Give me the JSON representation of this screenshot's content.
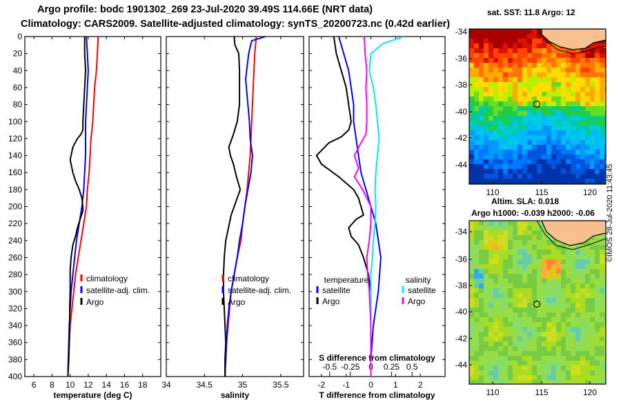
{
  "title": {
    "line1": "Argo profile: bodc 1901302_269 23-Jul-2020 39.49S 114.66E (NRT data)",
    "line2": "Climatology: CARS2009. Satellite-adjusted climatology: synTS_20200723.nc (0.42d earlier)"
  },
  "colors": {
    "climatology": "#ff0000",
    "satellite": "#0000ff",
    "argo": "#000000",
    "sat_salinity": "#00e8ff",
    "argo_salinity": "#ff00ff"
  },
  "depth_ticks": [
    0,
    20,
    40,
    60,
    80,
    100,
    120,
    140,
    160,
    180,
    200,
    220,
    240,
    260,
    280,
    300,
    320,
    340,
    360,
    380,
    400
  ],
  "chart_data": [
    {
      "type": "line",
      "name": "temperature",
      "xlabel": "temperature (deg C)",
      "ylabel": "depth",
      "xlim": [
        5,
        20
      ],
      "ylim": [
        400,
        0
      ],
      "xticks": [
        6,
        8,
        10,
        12,
        14,
        16,
        18
      ],
      "xtick_labels": [
        "6",
        "8",
        "10",
        "12",
        "14",
        "16",
        "18"
      ],
      "legend": [
        "climatology",
        "satellite-adj. clim.",
        "Argo"
      ],
      "series": [
        {
          "name": "climatology",
          "color": "#ff0000",
          "x": [
            13.1,
            13.0,
            12.9,
            12.7,
            12.6,
            12.5,
            12.3,
            12.2,
            12.1,
            11.9,
            11.8,
            11.5,
            11.2,
            10.9,
            10.6,
            10.4,
            10.2,
            10.0,
            9.9,
            9.8,
            9.75
          ],
          "y": [
            0,
            20,
            40,
            60,
            80,
            100,
            120,
            140,
            160,
            180,
            200,
            220,
            240,
            260,
            280,
            300,
            320,
            340,
            360,
            380,
            400
          ]
        },
        {
          "name": "satellite-adj. clim.",
          "color": "#0000ff",
          "x": [
            11.8,
            11.9,
            12.0,
            11.9,
            11.8,
            11.7,
            11.7,
            11.7,
            11.6,
            11.5,
            11.3,
            11.0,
            10.7,
            10.5,
            10.3,
            10.1,
            10.0,
            9.9,
            9.85,
            9.8,
            9.75
          ],
          "y": [
            0,
            20,
            40,
            60,
            80,
            100,
            120,
            140,
            160,
            180,
            200,
            220,
            240,
            260,
            280,
            300,
            320,
            340,
            360,
            380,
            400
          ]
        },
        {
          "name": "Argo",
          "color": "#000000",
          "x": [
            11.6,
            11.6,
            11.7,
            11.6,
            11.5,
            11.4,
            11.4,
            11.2,
            10.8,
            10.3,
            10.0,
            10.3,
            10.6,
            11.0,
            11.3,
            11.4,
            11.4,
            11.1,
            10.8,
            10.6,
            10.3,
            10.1,
            10.0,
            10.0,
            10.0,
            9.95,
            9.95,
            9.9,
            9.85,
            9.8,
            9.75
          ],
          "y": [
            0,
            20,
            40,
            60,
            80,
            100,
            110,
            115,
            120,
            130,
            145,
            160,
            170,
            180,
            190,
            200,
            205,
            215,
            225,
            235,
            245,
            260,
            275,
            290,
            300,
            320,
            340,
            360,
            380,
            390,
            400
          ]
        }
      ]
    },
    {
      "type": "line",
      "name": "salinity",
      "xlabel": "salinity",
      "xlim": [
        34,
        35.8
      ],
      "ylim": [
        400,
        0
      ],
      "xticks": [
        34,
        34.5,
        35,
        35.5
      ],
      "xtick_labels": [
        "34",
        "34.5",
        "35",
        "35.5"
      ],
      "legend": [
        "climatology",
        "satellite-adj. clim.",
        "Argo"
      ],
      "series": [
        {
          "name": "climatology",
          "color": "#ff0000",
          "x": [
            35.18,
            35.16,
            35.15,
            35.14,
            35.13,
            35.12,
            35.11,
            35.1,
            35.08,
            35.06,
            35.03,
            35.0,
            34.98,
            34.93,
            34.89,
            34.85,
            34.83,
            34.81,
            34.79,
            34.78,
            34.77
          ],
          "y": [
            0,
            20,
            40,
            60,
            80,
            100,
            120,
            140,
            160,
            180,
            200,
            220,
            240,
            260,
            280,
            300,
            320,
            340,
            360,
            380,
            400
          ]
        },
        {
          "name": "satellite-adj. clim.",
          "color": "#0000ff",
          "x": [
            35.3,
            35.12,
            35.08,
            35.04,
            35.06,
            35.09,
            35.1,
            35.13,
            35.11,
            35.07,
            35.03,
            35.0,
            34.96,
            34.93,
            34.89,
            34.85,
            34.82,
            34.8,
            34.79,
            34.78,
            34.77
          ],
          "y": [
            0,
            5,
            20,
            50,
            70,
            100,
            120,
            140,
            160,
            180,
            200,
            220,
            240,
            260,
            280,
            300,
            320,
            340,
            360,
            380,
            400
          ]
        },
        {
          "name": "Argo",
          "color": "#000000",
          "x": [
            34.89,
            34.9,
            34.95,
            34.96,
            34.96,
            34.96,
            34.93,
            34.88,
            34.82,
            34.84,
            34.88,
            34.92,
            34.97,
            34.93,
            34.85,
            34.78,
            34.76,
            34.75,
            34.75,
            34.76,
            34.77,
            34.78,
            34.77,
            34.77,
            34.77,
            34.77
          ],
          "y": [
            0,
            10,
            20,
            40,
            60,
            80,
            100,
            115,
            130,
            140,
            150,
            165,
            180,
            190,
            210,
            240,
            260,
            280,
            300,
            320,
            340,
            360,
            380,
            390,
            395,
            400
          ]
        }
      ]
    },
    {
      "type": "line",
      "name": "difference",
      "xlabel": "T difference from climatology",
      "x2label": "S difference from climatology",
      "xlim": [
        -2.5,
        3
      ],
      "ylim": [
        400,
        0
      ],
      "xticks": [
        -2,
        -1,
        0,
        1,
        2
      ],
      "xtick_labels": [
        "-2",
        "-1",
        "0",
        "1",
        "2"
      ],
      "s_xlim": [
        -0.75,
        0.9
      ],
      "s_xticks": [
        -0.5,
        -0.25,
        0,
        0.25,
        0.5
      ],
      "s_xtick_labels": [
        "-0.5",
        "-0.25",
        "0",
        "0.25",
        "0.5"
      ],
      "legend_groups": {
        "temperature": [
          "satellite",
          "Argo"
        ],
        "salinity": [
          "satellite",
          "Argo"
        ]
      },
      "series": [
        {
          "name": "temperature satellite",
          "color": "#0000ff",
          "x": [
            -1.3,
            -1.1,
            -0.9,
            -0.8,
            -0.7,
            -0.7,
            -0.6,
            -0.5,
            -0.4,
            -0.2,
            0.0,
            0.2,
            0.3,
            0.4,
            0.35,
            0.3,
            0.2,
            0.1,
            0.05,
            0.0,
            0.0
          ],
          "y": [
            0,
            20,
            40,
            60,
            80,
            100,
            120,
            140,
            160,
            180,
            200,
            220,
            240,
            260,
            280,
            300,
            320,
            340,
            360,
            380,
            400
          ]
        },
        {
          "name": "temperature Argo",
          "color": "#000000",
          "x": [
            -1.5,
            -1.4,
            -1.2,
            -1.0,
            -0.9,
            -0.8,
            -0.9,
            -1.2,
            -1.7,
            -2.2,
            -2.0,
            -1.3,
            -0.7,
            -0.5,
            -0.4,
            -0.3,
            -0.6,
            -0.9,
            -0.8,
            -0.5,
            -0.3,
            -0.1,
            0.0,
            0.0,
            0.0,
            0.0,
            0.0,
            0.0
          ],
          "y": [
            0,
            20,
            40,
            60,
            80,
            100,
            110,
            118,
            125,
            140,
            150,
            165,
            180,
            190,
            200,
            210,
            215,
            225,
            235,
            245,
            260,
            280,
            300,
            320,
            340,
            360,
            380,
            400
          ]
        },
        {
          "name": "salinity satellite",
          "color": "#00e8ff",
          "s": [
            0.4,
            0.15,
            0.0,
            -0.02,
            0.03,
            0.06,
            0.08,
            0.1,
            0.08,
            0.06,
            0.05,
            0.06,
            0.05,
            0.03,
            0.02,
            0.0,
            0.0,
            0.0,
            0.0,
            0.0,
            0.0
          ],
          "y": [
            0,
            8,
            20,
            40,
            60,
            80,
            100,
            120,
            140,
            160,
            180,
            200,
            220,
            240,
            260,
            280,
            300,
            320,
            340,
            360,
            400
          ]
        },
        {
          "name": "salinity Argo",
          "color": "#ff00ff",
          "s": [
            -0.08,
            -0.07,
            -0.05,
            -0.06,
            -0.05,
            -0.05,
            -0.06,
            -0.12,
            -0.2,
            -0.15,
            -0.2,
            -0.1,
            0.0,
            0.0,
            -0.02,
            -0.05,
            -0.04,
            -0.02,
            -0.01,
            0.0,
            0.0,
            0.0,
            0.0,
            0.0
          ],
          "y": [
            0,
            20,
            40,
            60,
            80,
            100,
            115,
            125,
            140,
            155,
            165,
            180,
            200,
            220,
            240,
            260,
            280,
            300,
            320,
            340,
            360,
            380,
            390,
            400
          ]
        }
      ]
    }
  ],
  "map_sst": {
    "title": "sat. SST: 11.8 Argo: 12",
    "lat_ticks": [
      "-34",
      "-36",
      "-38",
      "-40",
      "-42",
      "-44"
    ],
    "lon_ticks": [
      "110",
      "115",
      "120"
    ]
  },
  "map_sla": {
    "title1": "Altim. SLA: 0.018",
    "title2": "Argo h1000: -0.039 h2000: -0.06",
    "lat_ticks": [
      "-34",
      "-36",
      "-38",
      "-40",
      "-42",
      "-44"
    ],
    "lon_ticks": [
      "110",
      "115",
      "120"
    ]
  },
  "stamp": "©IMOS 28-Jul-2020 11:43:45"
}
